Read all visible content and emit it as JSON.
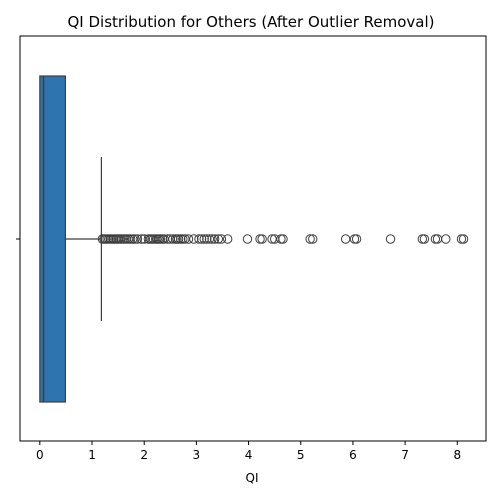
{
  "chart_data": {
    "type": "box",
    "orientation": "horizontal",
    "title": "QI Distribution for Others (After Outlier Removal)",
    "xlabel": "QI",
    "ylabel": "",
    "xlim": [
      -0.38,
      8.55
    ],
    "xticks": [
      0,
      1,
      2,
      3,
      4,
      5,
      6,
      7,
      8
    ],
    "grid": false,
    "box": {
      "min": 0.0,
      "q1": 0.0,
      "median": 0.07,
      "q3": 0.49,
      "whisker_high": 1.18,
      "color": "#2e75b0"
    },
    "outliers": [
      1.2,
      1.23,
      1.26,
      1.29,
      1.32,
      1.35,
      1.38,
      1.41,
      1.44,
      1.47,
      1.5,
      1.53,
      1.56,
      1.6,
      1.63,
      1.66,
      1.7,
      1.74,
      1.78,
      1.82,
      1.87,
      1.95,
      2.0,
      2.08,
      2.12,
      2.15,
      2.18,
      2.22,
      2.25,
      2.28,
      2.31,
      2.35,
      2.38,
      2.45,
      2.5,
      2.55,
      2.6,
      2.63,
      2.66,
      2.7,
      2.74,
      2.78,
      2.85,
      2.95,
      3.05,
      3.1,
      3.15,
      3.2,
      3.25,
      3.3,
      3.35,
      3.42,
      3.48,
      3.6,
      3.98,
      4.22,
      4.26,
      4.45,
      4.5,
      4.62,
      4.66,
      5.18,
      5.23,
      5.86,
      6.03,
      6.07,
      6.72,
      7.33,
      7.37,
      7.58,
      7.62,
      7.78,
      8.08,
      8.12
    ]
  }
}
